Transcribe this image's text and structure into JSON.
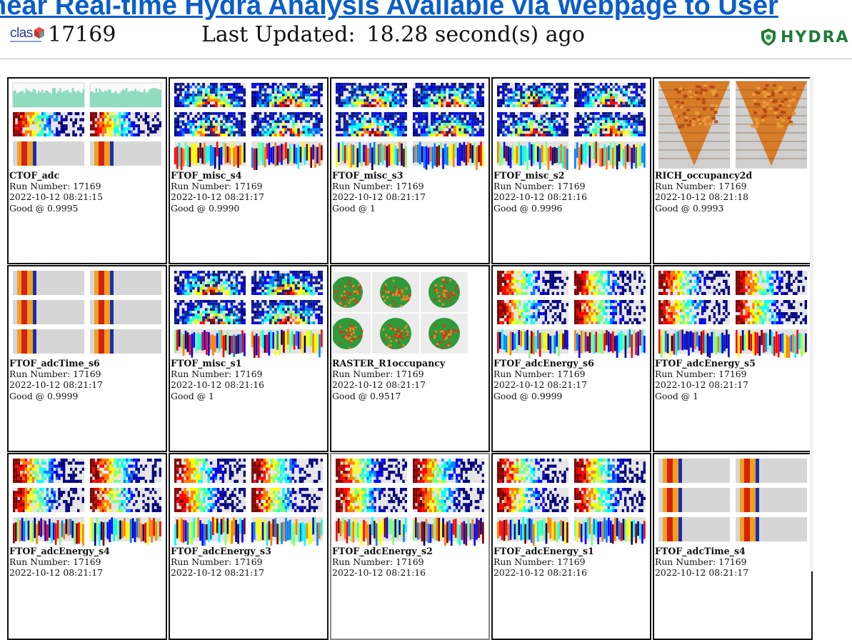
{
  "banner": {
    "text": "near Real-time Hydra Analysis Available via Webpage to User"
  },
  "header": {
    "logo_text": "clas",
    "run_number": "17169",
    "updated_label": "Last Updated:",
    "updated_value": "18.28 second(s) ago",
    "brand": "HYDRA"
  },
  "plots": [
    {
      "name": "CTOF_adc",
      "run": "Run Number: 17169",
      "time": "2022-10-12 08:21:15",
      "status": "Good @ 0.9995",
      "kind": "ctof"
    },
    {
      "name": "FTOF_misc_s4",
      "run": "Run Number: 17169",
      "time": "2022-10-12 08:21:17",
      "status": "Good @ 0.9990",
      "kind": "misc"
    },
    {
      "name": "FTOF_misc_s3",
      "run": "Run Number: 17169",
      "time": "2022-10-12 08:21:17",
      "status": "Good @ 1",
      "kind": "misc"
    },
    {
      "name": "FTOF_misc_s2",
      "run": "Run Number: 17169",
      "time": "2022-10-12 08:21:16",
      "status": "Good @ 0.9996",
      "kind": "misc"
    },
    {
      "name": "RICH_occupancy2d",
      "run": "Run Number: 17169",
      "time": "2022-10-12 08:21:18",
      "status": "Good @ 0.9993",
      "kind": "rich"
    },
    {
      "name": "FTOF_adcTime_s6",
      "run": "Run Number: 17169",
      "time": "2022-10-12 08:21:17",
      "status": "Good @ 0.9999",
      "kind": "adctime"
    },
    {
      "name": "FTOF_misc_s1",
      "run": "Run Number: 17169",
      "time": "2022-10-12 08:21:16",
      "status": "Good @ 1",
      "kind": "misc"
    },
    {
      "name": "RASTER_R1occupancy",
      "run": "Run Number: 17169",
      "time": "2022-10-12 08:21:17",
      "status": "Good @ 0.9517",
      "kind": "raster"
    },
    {
      "name": "FTOF_adcEnergy_s6",
      "run": "Run Number: 17169",
      "time": "2022-10-12 08:21:17",
      "status": "Good @ 0.9999",
      "kind": "energy"
    },
    {
      "name": "FTOF_adcEnergy_s5",
      "run": "Run Number: 17169",
      "time": "2022-10-12 08:21:17",
      "status": "Good @ 1",
      "kind": "energy"
    },
    {
      "name": "FTOF_adcEnergy_s4",
      "run": "Run Number: 17169",
      "time": "2022-10-12 08:21:17",
      "status": "",
      "kind": "energy"
    },
    {
      "name": "FTOF_adcEnergy_s3",
      "run": "Run Number: 17169",
      "time": "2022-10-12 08:21:17",
      "status": "",
      "kind": "energy"
    },
    {
      "name": "FTOF_adcEnergy_s2",
      "run": "Run Number: 17169",
      "time": "2022-10-12 08:21:16",
      "status": "",
      "kind": "energy"
    },
    {
      "name": "FTOF_adcEnergy_s1",
      "run": "Run Number: 17169",
      "time": "2022-10-12 08:21:16",
      "status": "",
      "kind": "energy"
    },
    {
      "name": "FTOF_adcTime_s4",
      "run": "Run Number: 17169",
      "time": "2022-10-12 08:21:17",
      "status": "",
      "kind": "adctime"
    }
  ]
}
